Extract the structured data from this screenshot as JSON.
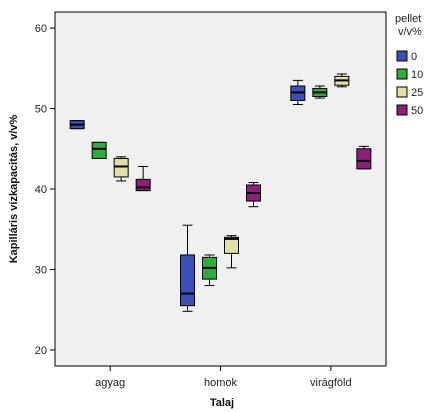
{
  "chart_data": {
    "type": "box",
    "xlabel": "Talaj",
    "ylabel": "Kapilláris vízkapacitás, v/v%",
    "ylim": [
      18,
      62
    ],
    "yticks": [
      20,
      30,
      40,
      50,
      60
    ],
    "categories": [
      "agyag",
      "homok",
      "virágföld"
    ],
    "legend": {
      "title_lines": [
        "pellet",
        "v/v%"
      ],
      "placement": "right"
    },
    "grid": false,
    "series": [
      {
        "name": "0",
        "color": "#3b4fb8",
        "boxes": [
          {
            "min": 47.5,
            "q1": 47.5,
            "median": 48.0,
            "q3": 48.5,
            "max": 48.5
          },
          {
            "min": 24.8,
            "q1": 25.5,
            "median": 27.0,
            "q3": 31.8,
            "max": 35.5
          },
          {
            "min": 50.5,
            "q1": 51.0,
            "median": 52.0,
            "q3": 52.8,
            "max": 53.5
          }
        ]
      },
      {
        "name": "10",
        "color": "#2dad3a",
        "boxes": [
          {
            "min": 43.8,
            "q1": 43.8,
            "median": 45.0,
            "q3": 45.8,
            "max": 45.8
          },
          {
            "min": 28.0,
            "q1": 28.8,
            "median": 30.2,
            "q3": 31.5,
            "max": 31.8
          },
          {
            "min": 51.3,
            "q1": 51.5,
            "median": 52.0,
            "q3": 52.5,
            "max": 52.8
          }
        ]
      },
      {
        "name": "25",
        "color": "#e2dfa3",
        "boxes": [
          {
            "min": 41.0,
            "q1": 41.5,
            "median": 42.8,
            "q3": 43.8,
            "max": 44.0
          },
          {
            "min": 30.2,
            "q1": 32.0,
            "median": 33.8,
            "q3": 34.0,
            "max": 34.2
          },
          {
            "min": 52.7,
            "q1": 52.9,
            "median": 53.5,
            "q3": 54.0,
            "max": 54.3
          }
        ]
      },
      {
        "name": "50",
        "color": "#8e1e7a",
        "boxes": [
          {
            "min": 39.8,
            "q1": 39.8,
            "median": 40.2,
            "q3": 41.2,
            "max": 42.8
          },
          {
            "min": 37.8,
            "q1": 38.5,
            "median": 39.5,
            "q3": 40.5,
            "max": 40.8
          },
          {
            "min": 42.5,
            "q1": 42.5,
            "median": 43.5,
            "q3": 45.0,
            "max": 45.3
          }
        ]
      }
    ]
  }
}
